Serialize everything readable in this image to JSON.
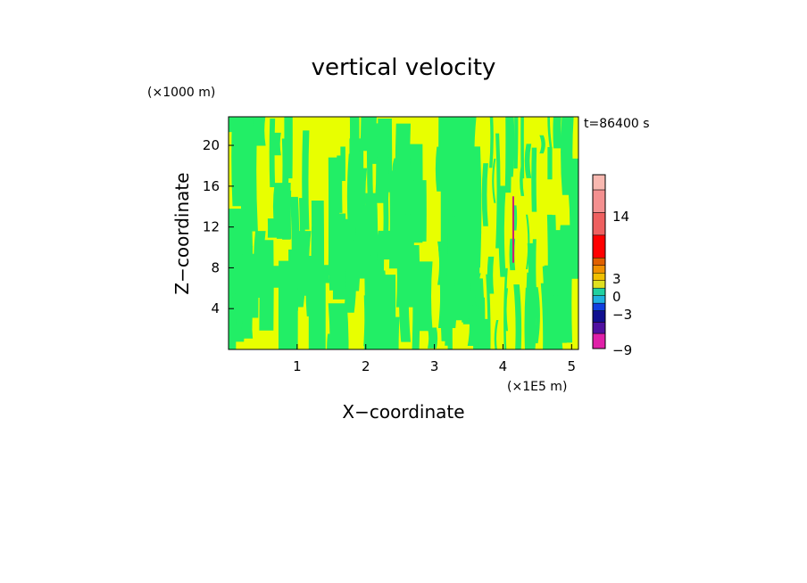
{
  "chart_data": {
    "type": "heatmap",
    "title": "vertical velocity",
    "xlabel": "X−coordinate",
    "ylabel": "Z−coordinate",
    "x_unit": "(×1E5 m)",
    "y_unit": "(×1000 m)",
    "time_label": "t=86400 s",
    "xlim": [
      0,
      5.1
    ],
    "ylim": [
      0,
      22.8
    ],
    "x_ticks": [
      1,
      2,
      3,
      4,
      5
    ],
    "y_ticks": [
      4,
      8,
      12,
      16,
      20
    ],
    "colorbar": {
      "tick_values": [
        14,
        3,
        0,
        -3,
        -9
      ],
      "tick_labels": [
        "14",
        "3",
        "0",
        "−3",
        "−9"
      ],
      "colors": [
        "#e020a8",
        "#5010a0",
        "#101090",
        "#1040e0",
        "#20b0e0",
        "#20d0a0",
        "#e0e020",
        "#f0c000",
        "#f09000",
        "#e06000",
        "#ff0000",
        "#ee6060",
        "#f49090",
        "#f8b8b0"
      ]
    },
    "field_colors": {
      "updraft": "#e8ff00",
      "downdraft": "#22ee66",
      "max_plume": "#cc2277"
    },
    "dominant_pattern": "alternating vertical columns of weak updraft (yellow) and weak downdraft (green) over the whole domain, with denser narrow streaks near x = 3.7 to 4.6"
  }
}
